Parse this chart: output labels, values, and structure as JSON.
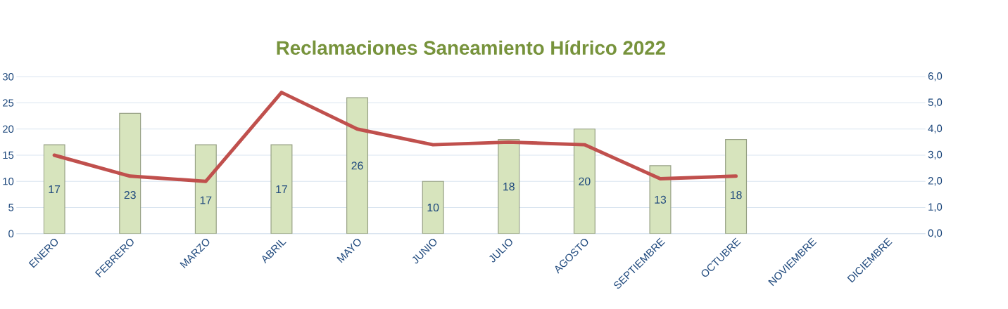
{
  "chart_data": {
    "type": "bar",
    "title": "Reclamaciones Saneamiento Hídrico 2022",
    "categories": [
      "ENERO",
      "FEBRERO",
      "MARZO",
      "ABRIL",
      "MAYO",
      "JUNIO",
      "JULIO",
      "AGOSTO",
      "SEPTIEMBRE",
      "OCTUBRE",
      "NOVIEMBRE",
      "DICIEMBRE"
    ],
    "series": [
      {
        "color": "#d7e4bd",
        "values": [
          17,
          23,
          17,
          17,
          26,
          10,
          18,
          20,
          13,
          18,
          null,
          null
        ],
        "value_labels": [
          "17",
          "23",
          "17",
          "17",
          "26",
          "10",
          "18",
          "20",
          "13",
          "18",
          null,
          null
        ]
      },
      {
        "type": "line",
        "axis": "y2",
        "color": "#c0504d",
        "values": [
          3.0,
          2.2,
          2.0,
          5.4,
          4.0,
          3.4,
          3.5,
          3.4,
          2.1,
          2.2,
          null,
          null
        ]
      }
    ],
    "ylim": [
      0,
      30
    ],
    "yticks": [
      0,
      5,
      10,
      15,
      20,
      25,
      30
    ],
    "y2lim": [
      0,
      6
    ],
    "y2ticks": [
      {
        "value": 0,
        "label": "0,0"
      },
      {
        "value": 1,
        "label": "1,0"
      },
      {
        "value": 2,
        "label": "2,0"
      },
      {
        "value": 3,
        "label": "3,0"
      },
      {
        "value": 4,
        "label": "4,0"
      },
      {
        "value": 5,
        "label": "5,0"
      },
      {
        "value": 6,
        "label": "6,0"
      }
    ],
    "grid": "y"
  }
}
